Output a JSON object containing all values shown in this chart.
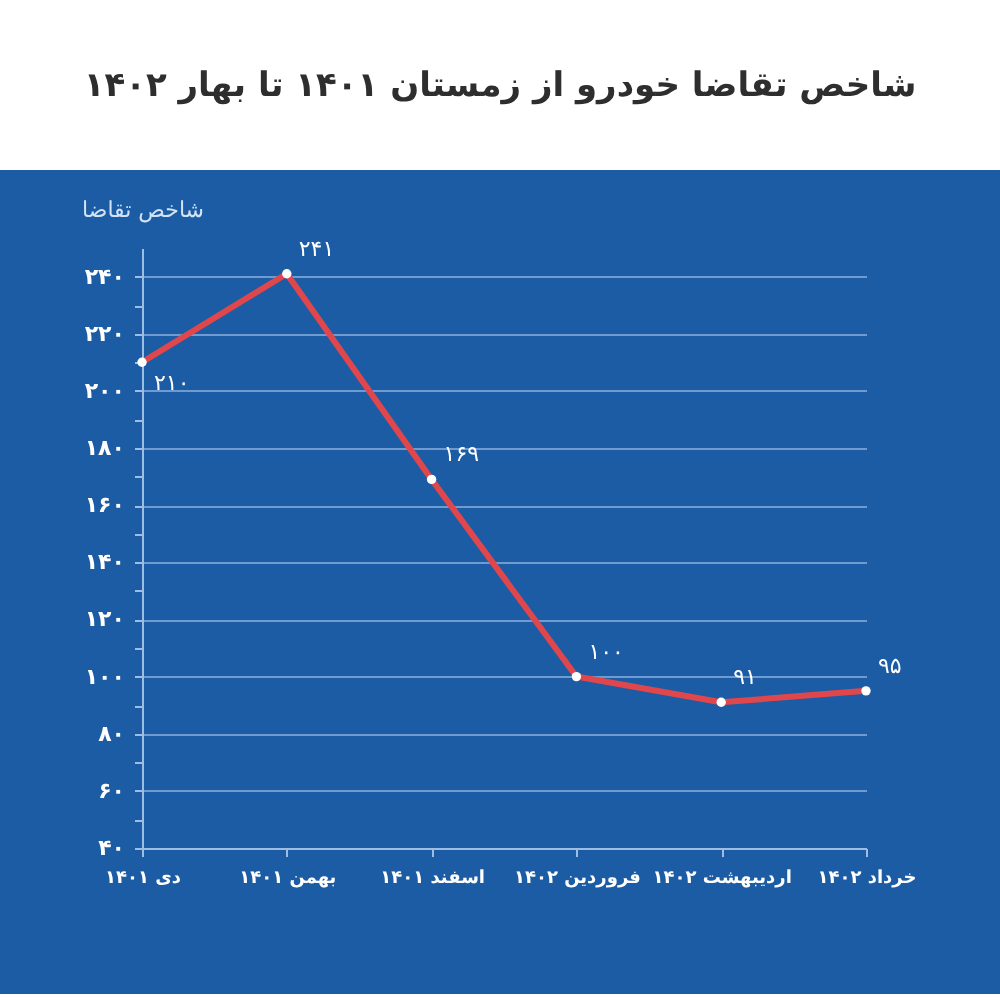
{
  "chart_data": {
    "type": "line",
    "title": "شاخص تقاضا خودرو از زمستان ۱۴۰۱ تا بهار ۱۴۰۲",
    "ylabel": "شاخص تقاضا",
    "categories": [
      "دی ۱۴۰۱",
      "بهمن ۱۴۰۱",
      "اسفند ۱۴۰۱",
      "فروردین ۱۴۰۲",
      "اردیبهشت ۱۴۰۲",
      "خرداد ۱۴۰۲"
    ],
    "values": [
      210,
      241,
      169,
      100,
      91,
      95
    ],
    "color": "#e0474c",
    "value_labels": [
      "۲۱۰",
      "۲۴۱",
      "۱۶۹",
      "۱۰۰",
      "۹۱",
      "۹۵"
    ],
    "ylim": [
      40,
      250
    ],
    "yticks": [
      {
        "value": 40,
        "label": "۴۰"
      },
      {
        "value": 50,
        "label": null
      },
      {
        "value": 60,
        "label": "۶۰"
      },
      {
        "value": 70,
        "label": null
      },
      {
        "value": 80,
        "label": "۸۰"
      },
      {
        "value": 90,
        "label": null
      },
      {
        "value": 100,
        "label": "۱۰۰"
      },
      {
        "value": 110,
        "label": null
      },
      {
        "value": 120,
        "label": "۱۲۰"
      },
      {
        "value": 130,
        "label": null
      },
      {
        "value": 140,
        "label": "۱۴۰"
      },
      {
        "value": 150,
        "label": null
      },
      {
        "value": 160,
        "label": "۱۶۰"
      },
      {
        "value": 170,
        "label": null
      },
      {
        "value": 180,
        "label": "۱۸۰"
      },
      {
        "value": 190,
        "label": null
      },
      {
        "value": 200,
        "label": "۲۰۰"
      },
      {
        "value": 210,
        "label": null
      },
      {
        "value": 220,
        "label": "۲۲۰"
      },
      {
        "value": 230,
        "label": null
      },
      {
        "value": 240,
        "label": "۲۴۰"
      }
    ],
    "grid": "y",
    "marker": "circle",
    "line_style": "solid"
  }
}
